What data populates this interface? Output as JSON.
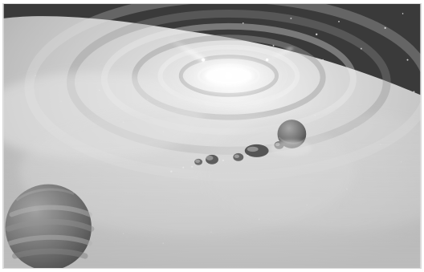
{
  "image": {
    "kind": "grayscale-illustration",
    "subject": "protoplanetary-disk",
    "palette": {
      "space": "#2c2c2c",
      "disk_light": "#e6e6e6",
      "disk_mid": "#bdbdbd",
      "disk_dark": "#8f8f8f",
      "star_core": "#ffffff",
      "planet_dark": "#5a5a5a"
    }
  }
}
